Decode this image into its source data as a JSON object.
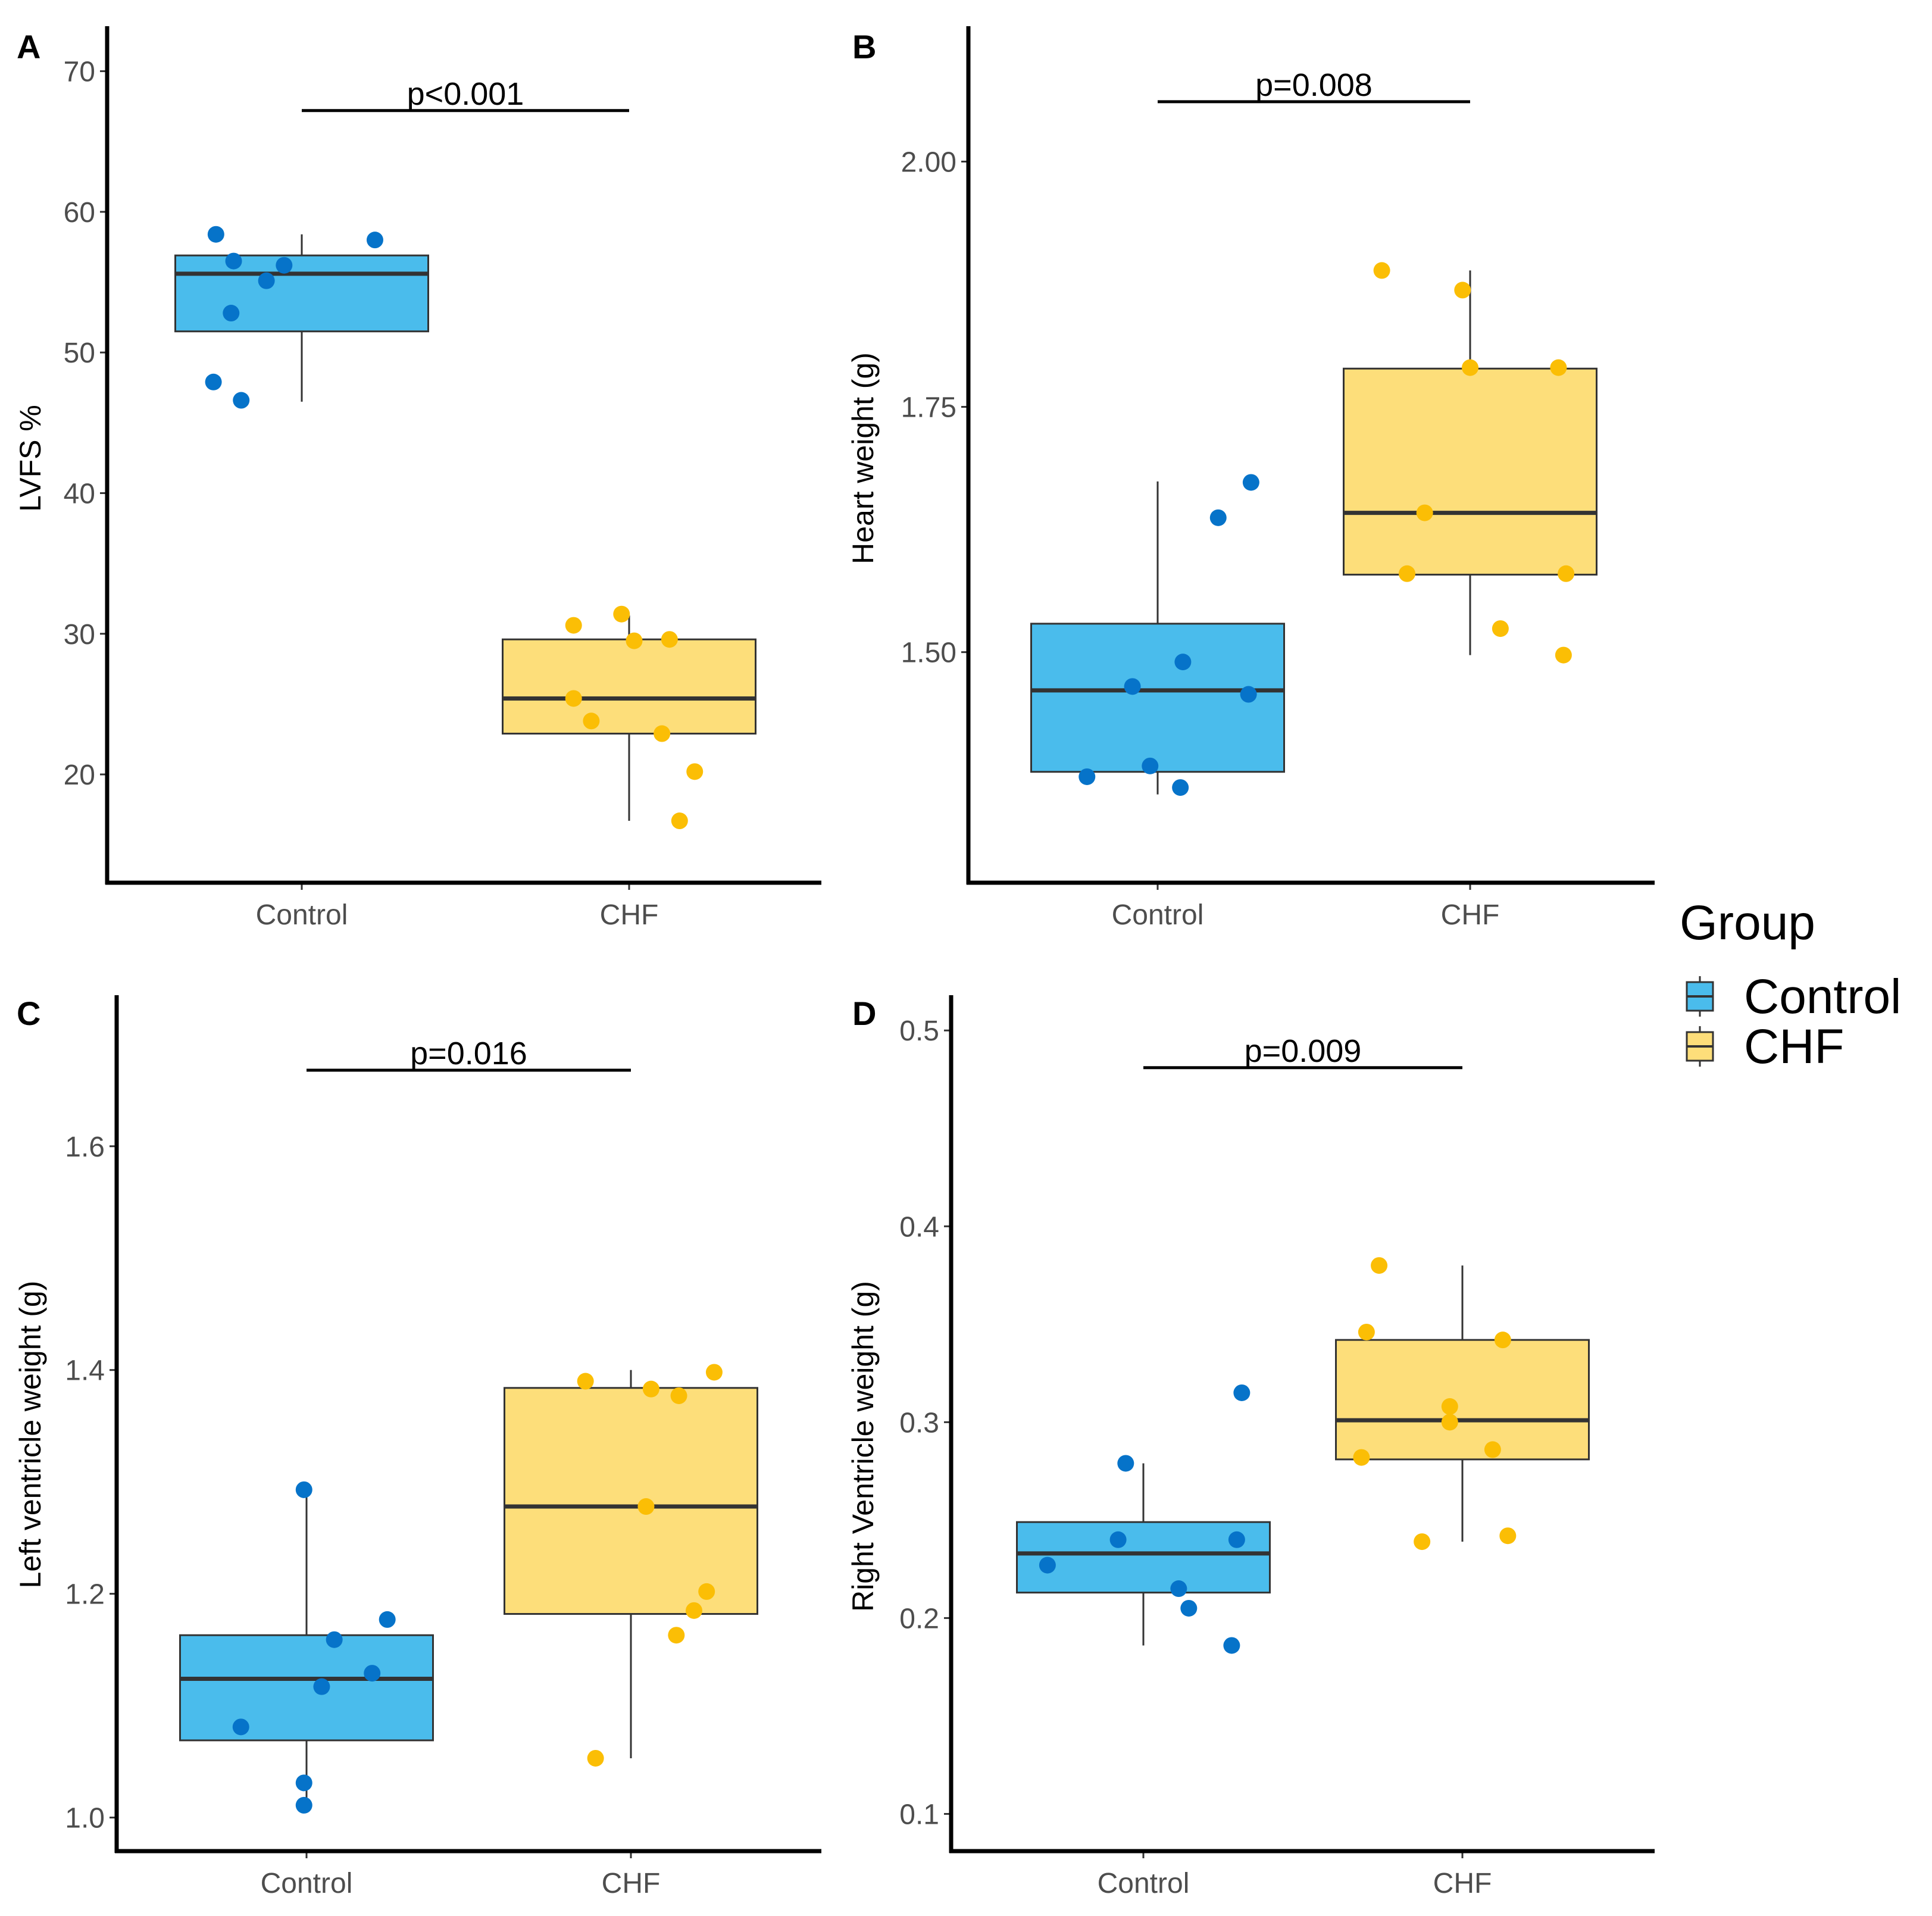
{
  "legend": {
    "title": "Group",
    "items": [
      {
        "label": "Control",
        "color": "#4ABCEC"
      },
      {
        "label": "CHF",
        "color": "#FDDE7A"
      }
    ]
  },
  "colors": {
    "control_fill": "#4ABCEC",
    "chf_fill": "#FDDE7A",
    "control_point": "#0673C9",
    "chf_point": "#FBBE05",
    "median_line": "#333333"
  },
  "chart_data": [
    {
      "id": "A",
      "type": "box",
      "panel_label": "A",
      "ylabel": "LVFS %",
      "categories": [
        "Control",
        "CHF"
      ],
      "ylim": [
        12.3,
        73.2
      ],
      "yticks": [
        20,
        30,
        40,
        50,
        60,
        70
      ],
      "ytick_labels": [
        "20",
        "30",
        "40",
        "50",
        "60",
        "70"
      ],
      "p_label": "p<0.001",
      "p_y": 67.2,
      "series": [
        {
          "name": "Control",
          "box": {
            "q1": 51.5,
            "median": 55.6,
            "q3": 56.9,
            "whisker_low": 46.5,
            "whisker_high": 58.4
          },
          "points": [
            [
              -0.34,
              58.4
            ],
            [
              -0.27,
              56.5
            ],
            [
              -0.14,
              55.1
            ],
            [
              -0.07,
              56.2
            ],
            [
              -0.28,
              52.8
            ],
            [
              -0.35,
              47.9
            ],
            [
              -0.24,
              46.6
            ],
            [
              0.29,
              58.0
            ]
          ]
        },
        {
          "name": "CHF",
          "box": {
            "q1": 22.9,
            "median": 25.4,
            "q3": 29.6,
            "whisker_low": 16.7,
            "whisker_high": 31.3
          },
          "points": [
            [
              -0.22,
              30.6
            ],
            [
              -0.03,
              31.4
            ],
            [
              0.02,
              29.5
            ],
            [
              0.16,
              29.6
            ],
            [
              -0.22,
              25.4
            ],
            [
              -0.15,
              23.8
            ],
            [
              0.13,
              22.9
            ],
            [
              0.26,
              20.2
            ],
            [
              0.2,
              16.7
            ]
          ]
        }
      ]
    },
    {
      "id": "B",
      "type": "box",
      "panel_label": "B",
      "ylabel": "Heart weight (g)",
      "categories": [
        "Control",
        "CHF"
      ],
      "ylim": [
        1.265,
        2.138
      ],
      "yticks": [
        1.5,
        1.75,
        2.0
      ],
      "ytick_labels": [
        "1.50",
        "1.75",
        "2.00"
      ],
      "p_label": "p=0.008",
      "p_y": 2.061,
      "series": [
        {
          "name": "Control",
          "box": {
            "q1": 1.378,
            "median": 1.461,
            "q3": 1.529,
            "whisker_low": 1.355,
            "whisker_high": 1.674
          },
          "points": [
            [
              -0.28,
              1.373
            ],
            [
              -0.1,
              1.465
            ],
            [
              0.1,
              1.49
            ],
            [
              -0.03,
              1.384
            ],
            [
              0.09,
              1.362
            ],
            [
              0.24,
              1.637
            ],
            [
              0.37,
              1.673
            ],
            [
              0.36,
              1.457
            ]
          ]
        },
        {
          "name": "CHF",
          "box": {
            "q1": 1.579,
            "median": 1.642,
            "q3": 1.789,
            "whisker_low": 1.497,
            "whisker_high": 1.889
          },
          "points": [
            [
              -0.35,
              1.889
            ],
            [
              -0.03,
              1.869
            ],
            [
              0.0,
              1.79
            ],
            [
              0.35,
              1.79
            ],
            [
              -0.18,
              1.642
            ],
            [
              -0.25,
              1.58
            ],
            [
              0.12,
              1.524
            ],
            [
              0.38,
              1.58
            ],
            [
              0.37,
              1.497
            ]
          ]
        }
      ]
    },
    {
      "id": "C",
      "type": "box",
      "panel_label": "C",
      "ylabel": "Left ventricle weight (g)",
      "categories": [
        "Control",
        "CHF"
      ],
      "ylim": [
        0.97,
        1.735
      ],
      "yticks": [
        1.0,
        1.2,
        1.4,
        1.6
      ],
      "ytick_labels": [
        "1.0",
        "1.2",
        "1.4",
        "1.6"
      ],
      "p_label": "p=0.016",
      "p_y": 1.668,
      "series": [
        {
          "name": "Control",
          "box": {
            "q1": 1.069,
            "median": 1.124,
            "q3": 1.163,
            "whisker_low": 1.011,
            "whisker_high": 1.293
          },
          "points": [
            [
              -0.26,
              1.081
            ],
            [
              -0.01,
              1.293
            ],
            [
              0.11,
              1.159
            ],
            [
              0.06,
              1.117
            ],
            [
              0.26,
              1.129
            ],
            [
              0.32,
              1.177
            ],
            [
              -0.01,
              1.031
            ],
            [
              -0.01,
              1.011
            ]
          ]
        },
        {
          "name": "CHF",
          "box": {
            "q1": 1.182,
            "median": 1.278,
            "q3": 1.384,
            "whisker_low": 1.053,
            "whisker_high": 1.4
          },
          "points": [
            [
              -0.18,
              1.39
            ],
            [
              0.08,
              1.383
            ],
            [
              0.19,
              1.377
            ],
            [
              0.33,
              1.398
            ],
            [
              0.06,
              1.278
            ],
            [
              0.3,
              1.202
            ],
            [
              0.25,
              1.185
            ],
            [
              0.18,
              1.163
            ],
            [
              -0.14,
              1.053
            ]
          ]
        }
      ]
    },
    {
      "id": "D",
      "type": "box",
      "panel_label": "D",
      "ylabel": "Right Ventricle weight (g)",
      "categories": [
        "Control",
        "CHF"
      ],
      "ylim": [
        0.081,
        0.518
      ],
      "yticks": [
        0.1,
        0.2,
        0.3,
        0.4,
        0.5
      ],
      "ytick_labels": [
        "0.1",
        "0.2",
        "0.3",
        "0.4",
        "0.5"
      ],
      "p_label": "p=0.009",
      "p_y": 0.481,
      "series": [
        {
          "name": "Control",
          "box": {
            "q1": 0.213,
            "median": 0.233,
            "q3": 0.249,
            "whisker_low": 0.186,
            "whisker_high": 0.279
          },
          "points": [
            [
              -0.38,
              0.227
            ],
            [
              -0.1,
              0.24
            ],
            [
              -0.07,
              0.279
            ],
            [
              0.14,
              0.215
            ],
            [
              0.18,
              0.205
            ],
            [
              0.37,
              0.24
            ],
            [
              0.39,
              0.315
            ],
            [
              0.35,
              0.186
            ]
          ]
        },
        {
          "name": "CHF",
          "box": {
            "q1": 0.281,
            "median": 0.301,
            "q3": 0.342,
            "whisker_low": 0.239,
            "whisker_high": 0.38
          },
          "points": [
            [
              -0.33,
              0.38
            ],
            [
              -0.38,
              0.346
            ],
            [
              0.16,
              0.342
            ],
            [
              -0.05,
              0.308
            ],
            [
              -0.05,
              0.3
            ],
            [
              -0.4,
              0.282
            ],
            [
              0.12,
              0.286
            ],
            [
              -0.16,
              0.239
            ],
            [
              0.18,
              0.242
            ]
          ]
        }
      ]
    }
  ]
}
